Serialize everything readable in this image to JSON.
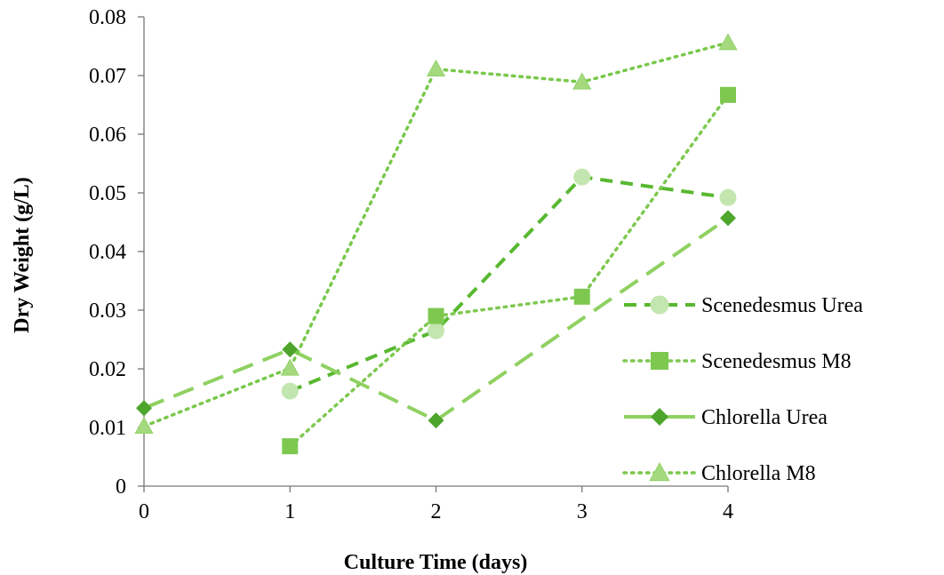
{
  "chart_data": {
    "type": "line",
    "title": "",
    "xlabel": "Culture Time (days)",
    "ylabel": "Dry Weight (g/L)",
    "x": [
      0,
      1,
      2,
      3,
      4
    ],
    "xlim": [
      0,
      4
    ],
    "ylim": [
      0,
      0.08
    ],
    "xticks": [
      "0",
      "1",
      "2",
      "3",
      "4"
    ],
    "yticks": [
      "0",
      "0.01",
      "0.02",
      "0.03",
      "0.04",
      "0.05",
      "0.06",
      "0.07",
      "0.08"
    ],
    "grid": false,
    "legend_position": "right",
    "series": [
      {
        "name": "Scenedesmus Urea",
        "values": [
          null,
          0.0162,
          0.0265,
          0.0527,
          0.0492
        ],
        "color": "#c3e6b0",
        "line_color": "#58b830",
        "dash": "dashed",
        "marker": "circle"
      },
      {
        "name": "Scenedesmus M8",
        "values": [
          null,
          0.0068,
          0.029,
          0.0323,
          0.0667
        ],
        "color": "#7ec850",
        "line_color": "#7ec850",
        "dash": "dotted",
        "marker": "square"
      },
      {
        "name": "Chlorella Urea",
        "values": [
          0.0133,
          0.0233,
          0.0112,
          0.0285,
          0.0457
        ],
        "color": "#4ea52c",
        "line_color": "#8fd161",
        "dash": "long-dashed",
        "marker": "diamond"
      },
      {
        "name": "Chlorella M8",
        "values": [
          0.0102,
          0.0201,
          0.0711,
          0.0689,
          0.0756
        ],
        "color": "#a4d97e",
        "line_color": "#78c84a",
        "dash": "dotted",
        "marker": "triangle"
      }
    ]
  }
}
